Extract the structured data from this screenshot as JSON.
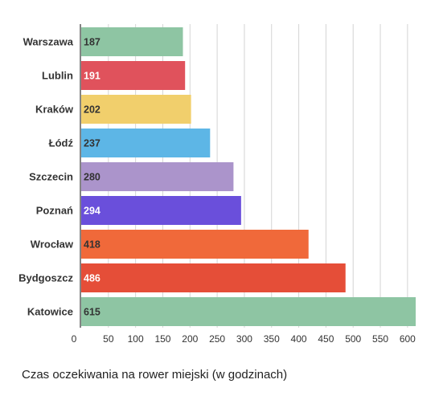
{
  "chart_data": {
    "type": "bar",
    "orientation": "horizontal",
    "categories": [
      "Warszawa",
      "Lublin",
      "Kraków",
      "Łódź",
      "Szczecin",
      "Poznań",
      "Wrocław",
      "Bydgoszcz",
      "Katowice"
    ],
    "values": [
      187,
      191,
      202,
      237,
      280,
      294,
      418,
      486,
      615
    ],
    "colors": [
      "#8ec5a3",
      "#e0525c",
      "#f1cf6c",
      "#5db6e6",
      "#ab94cb",
      "#6a4fdb",
      "#f0693a",
      "#e54e38",
      "#8ec5a3"
    ],
    "label_colors": [
      "#333333",
      "#ffffff",
      "#333333",
      "#333333",
      "#333333",
      "#ffffff",
      "#333333",
      "#ffffff",
      "#333333"
    ],
    "xlim": [
      0,
      615
    ],
    "xticks": [
      0,
      50,
      100,
      150,
      200,
      250,
      300,
      350,
      400,
      450,
      500,
      550,
      600
    ],
    "grid": true,
    "title": "Czas oczekiwania na rower miejski (w godzinach)",
    "xlabel": "",
    "ylabel": ""
  }
}
